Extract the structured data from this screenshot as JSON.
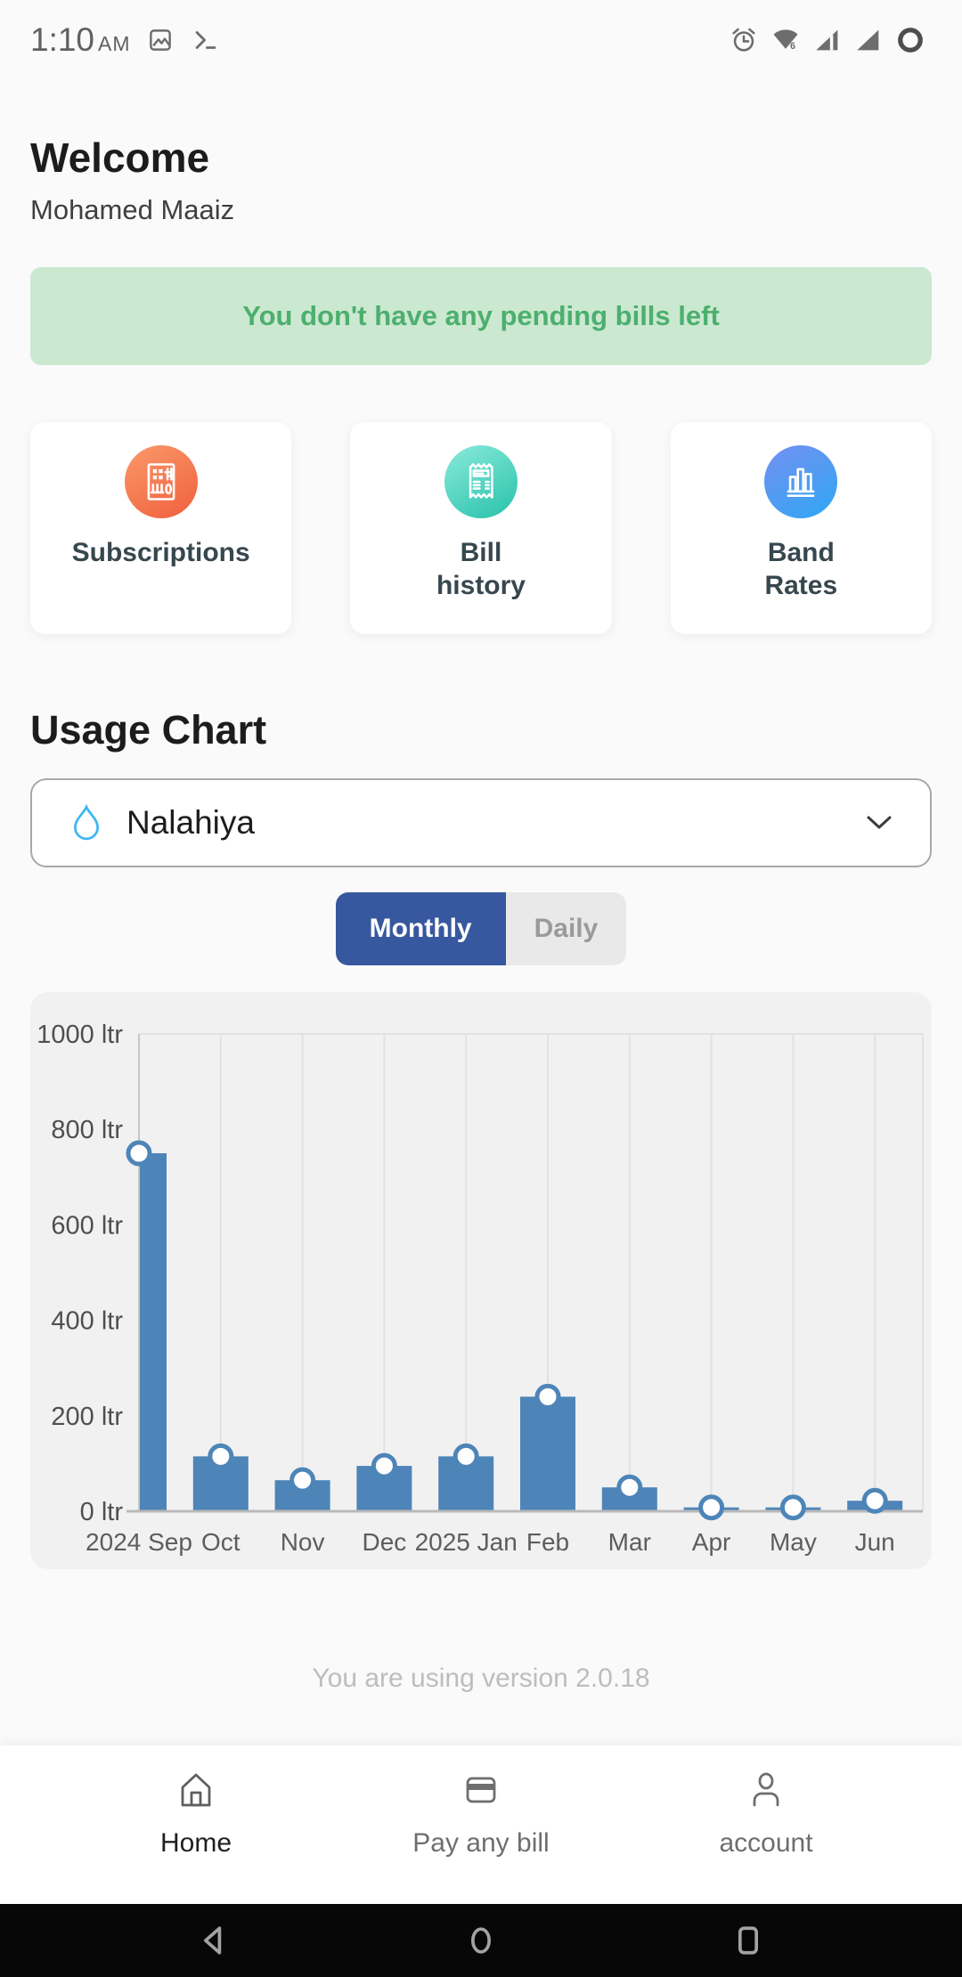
{
  "status_bar": {
    "time": "1:10",
    "meridiem": "AM",
    "left_icons": [
      "screenshot-icon",
      "terminal-icon"
    ],
    "right_icons": [
      "alarm-icon",
      "wifi6-icon",
      "signal-notch-icon",
      "signal-icon",
      "battery-ring-icon"
    ]
  },
  "header": {
    "title": "Welcome",
    "subtitle": "Mohamed Maaiz"
  },
  "banner": {
    "text": "You don't have any pending bills left",
    "bg_color": "#cbe8d0",
    "text_color": "#4caf6e"
  },
  "quick_actions": [
    {
      "label": "Subscriptions",
      "icon": "subscriptions-icon",
      "gradient": [
        "#f9996b",
        "#f15f3d"
      ]
    },
    {
      "label": "Bill\nhistory",
      "icon": "bill-history-icon",
      "gradient": [
        "#8beadb",
        "#27c2aa"
      ]
    },
    {
      "label": "Band\nRates",
      "icon": "band-rates-icon",
      "gradient": [
        "#7490f2",
        "#2fa7f3"
      ]
    }
  ],
  "usage": {
    "title": "Usage Chart",
    "selector": {
      "value": "Nalahiya",
      "icon": "water-drop-icon"
    },
    "tabs": [
      {
        "label": "Monthly",
        "active": true
      },
      {
        "label": "Daily",
        "active": false
      }
    ],
    "active_tab_color": "#37589e"
  },
  "chart_data": {
    "type": "bar",
    "title": "Monthly water usage",
    "categories": [
      "2024 Sep",
      "Oct",
      "Nov",
      "Dec",
      "2025 Jan",
      "Feb",
      "Mar",
      "Apr",
      "May",
      "Jun"
    ],
    "values": [
      750,
      115,
      65,
      95,
      115,
      240,
      50,
      8,
      8,
      22
    ],
    "unit": "ltr",
    "ylim": [
      0,
      1000
    ],
    "yticks": [
      0,
      200,
      400,
      600,
      800,
      1000
    ],
    "xlabel": "",
    "ylabel": "",
    "bar_color": "#4e85b8",
    "marker": "open-circle",
    "grid": "vertical",
    "plot_bg": "#f1f1f1",
    "legend": "none"
  },
  "footer": {
    "version_text": "You are using version 2.0.18"
  },
  "bottom_nav": {
    "items": [
      {
        "label": "Home",
        "icon": "home-icon",
        "active": true
      },
      {
        "label": "Pay any bill",
        "icon": "card-icon",
        "active": false
      },
      {
        "label": "account",
        "icon": "person-icon",
        "active": false
      }
    ]
  },
  "android_nav": {
    "items": [
      "back",
      "home",
      "recents"
    ]
  }
}
